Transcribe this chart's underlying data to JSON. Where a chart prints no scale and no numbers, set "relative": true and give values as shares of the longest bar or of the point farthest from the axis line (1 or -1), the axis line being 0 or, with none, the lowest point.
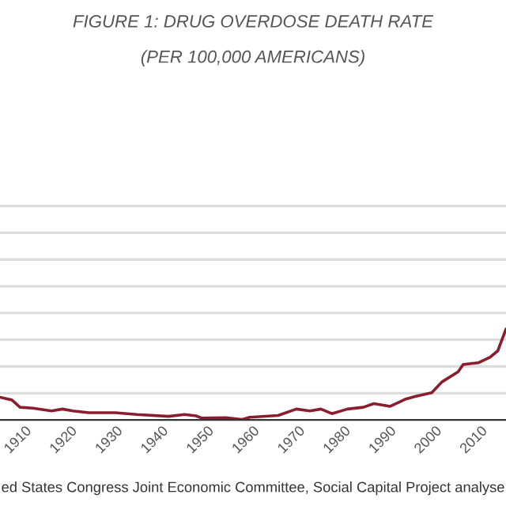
{
  "chart_data": {
    "type": "line",
    "title": "FIGURE 1: DRUG OVERDOSE DEATH RATE",
    "subtitle": "(PER 100,000 AMERICANS)",
    "relative": true,
    "grid": "y",
    "legend": false,
    "x": [
      1906,
      1908.6,
      1910.4,
      1913.2,
      1917.3,
      1919.7,
      1922,
      1925.5,
      1931.3,
      1936,
      1943,
      1946.5,
      1949,
      1950.3,
      1955.5,
      1959,
      1960.8,
      1967,
      1971,
      1974,
      1976.4,
      1978.8,
      1982.2,
      1985.7,
      1988,
      1991.6,
      1995,
      1997.2,
      2000.7,
      2003,
      2006.5,
      2007.6,
      2011,
      2013.5,
      2015.2,
      2017
    ],
    "series": [
      {
        "color": "#8b1e2e",
        "values": [
          0.25,
          0.22,
          0.14,
          0.13,
          0.1,
          0.12,
          0.1,
          0.08,
          0.08,
          0.06,
          0.04,
          0.06,
          0.045,
          0.02,
          0.025,
          0.005,
          0.03,
          0.05,
          0.12,
          0.1,
          0.12,
          0.07,
          0.12,
          0.14,
          0.18,
          0.15,
          0.23,
          0.26,
          0.3,
          0.42,
          0.53,
          0.61,
          0.63,
          0.69,
          0.76,
          1
        ]
      }
    ],
    "xlim": [
      1906,
      2017
    ],
    "xticks": [
      1910,
      1920,
      1930,
      1940,
      1950,
      1960,
      1970,
      1980,
      1990,
      2000,
      2010
    ],
    "annotations": [
      "ed States Congress Joint Economic Committee, Social Capital Project analyse"
    ]
  }
}
